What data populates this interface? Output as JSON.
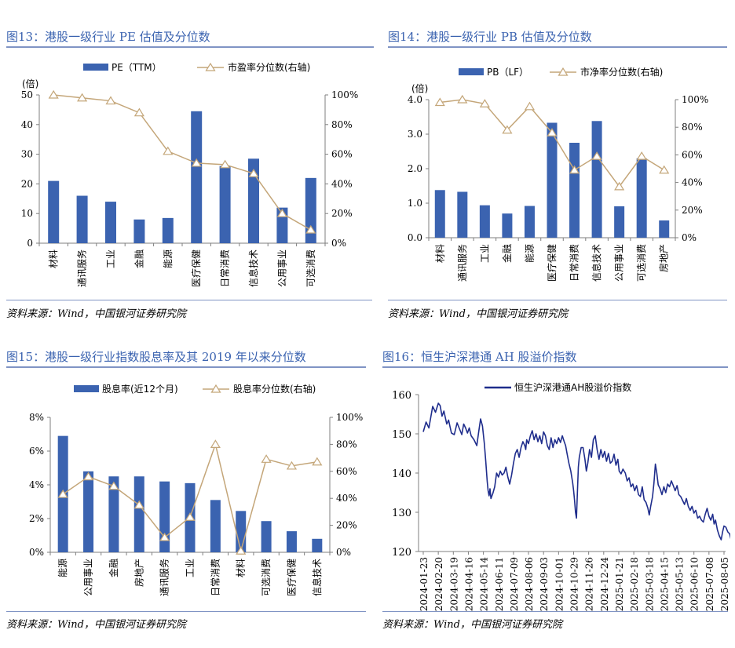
{
  "colors": {
    "bar": "#3b63b0",
    "line": "#c4a679",
    "title": "#3b63b0",
    "navy": "#1f2d8c",
    "axis": "#7f7f7f"
  },
  "source_text": "资料来源：Wind，中国银河证券研究院",
  "chart_data": [
    {
      "id": "fig13",
      "title": "图13：港股一级行业 PE 估值及分位数",
      "type": "bar+line",
      "unit_label": "(倍)",
      "legend": {
        "bar": "PE（TTM）",
        "line": "市盈率分位数(右轴)"
      },
      "categories": [
        "材料",
        "通讯服务",
        "工业",
        "金融",
        "能源",
        "医疗保健",
        "日常消费",
        "信息技术",
        "公用事业",
        "可选消费"
      ],
      "series": [
        {
          "name": "PE（TTM）",
          "axis": "left",
          "kind": "bar",
          "values": [
            21,
            16,
            14,
            8,
            8.5,
            44.5,
            26,
            28.5,
            12,
            22
          ]
        },
        {
          "name": "市盈率分位数(右轴)",
          "axis": "right",
          "kind": "line",
          "values": [
            100,
            98,
            96,
            88,
            62,
            54,
            53,
            47,
            20,
            9
          ]
        }
      ],
      "y_left": {
        "min": 0,
        "max": 50,
        "ticks": [
          "0",
          "10",
          "20",
          "30",
          "40",
          "50"
        ]
      },
      "y_right": {
        "min": 0,
        "max": 100,
        "ticks": [
          "0%",
          "20%",
          "40%",
          "60%",
          "80%",
          "100%"
        ]
      },
      "legend_position": "top-center"
    },
    {
      "id": "fig14",
      "title": "图14：港股一级行业 PB 估值及分位数",
      "type": "bar+line",
      "unit_label": "(倍)",
      "legend": {
        "bar": "PB（LF）",
        "line": "市净率分位数(右轴)"
      },
      "categories": [
        "材料",
        "通讯服务",
        "工业",
        "金融",
        "能源",
        "医疗保健",
        "日常消费",
        "信息技术",
        "公用事业",
        "可选消费",
        "房地产"
      ],
      "series": [
        {
          "name": "PB（LF）",
          "axis": "left",
          "kind": "bar",
          "values": [
            1.38,
            1.33,
            0.94,
            0.7,
            0.92,
            3.33,
            2.75,
            3.38,
            0.91,
            2.3,
            0.5
          ]
        },
        {
          "name": "市净率分位数(右轴)",
          "axis": "right",
          "kind": "line",
          "values": [
            98,
            100,
            97,
            78,
            95,
            76,
            49,
            59,
            37,
            59,
            49
          ]
        }
      ],
      "y_left": {
        "min": 0,
        "max": 4,
        "ticks": [
          "0.0",
          "1.0",
          "2.0",
          "3.0",
          "4.0"
        ]
      },
      "y_right": {
        "min": 0,
        "max": 100,
        "ticks": [
          "0%",
          "20%",
          "40%",
          "60%",
          "80%",
          "100%"
        ]
      },
      "legend_position": "top-center"
    },
    {
      "id": "fig15",
      "title": "图15：港股一级行业指数股息率及其 2019 年以来分位数",
      "type": "bar+line",
      "legend": {
        "bar": "股息率(近12个月)",
        "line": "股息率分位数(右轴)"
      },
      "categories": [
        "能源",
        "公用事业",
        "金融",
        "房地产",
        "通讯服务",
        "工业",
        "日常消费",
        "材料",
        "可选消费",
        "医疗保健",
        "信息技术"
      ],
      "series": [
        {
          "name": "股息率(近12个月)",
          "axis": "left",
          "kind": "bar",
          "values": [
            6.9,
            4.8,
            4.5,
            4.5,
            4.2,
            4.1,
            3.1,
            2.45,
            1.85,
            1.25,
            0.8
          ]
        },
        {
          "name": "股息率分位数(右轴)",
          "axis": "right",
          "kind": "line",
          "values": [
            43,
            56,
            49,
            35,
            11,
            26,
            80,
            1,
            69,
            64,
            67
          ]
        }
      ],
      "y_left": {
        "min": 0,
        "max": 8,
        "ticks": [
          "0%",
          "2%",
          "4%",
          "6%",
          "8%"
        ]
      },
      "y_right": {
        "min": 0,
        "max": 100,
        "ticks": [
          "0%",
          "20%",
          "40%",
          "60%",
          "80%",
          "100%"
        ]
      },
      "legend_position": "top-center"
    },
    {
      "id": "fig16",
      "title": "图16：恒生沪深港通 AH 股溢价指数",
      "type": "line",
      "legend": {
        "line": "恒生沪深港通AH股溢价指数"
      },
      "x_ticks": [
        "2024-01-23",
        "2024-02-20",
        "2024-03-19",
        "2024-04-16",
        "2024-05-14",
        "2024-06-11",
        "2024-07-09",
        "2024-08-06",
        "2024-09-03",
        "2024-10-01",
        "2024-10-29",
        "2024-11-26",
        "2024-12-24",
        "2025-01-21",
        "2025-02-18",
        "2025-03-18",
        "2025-04-15",
        "2025-05-13",
        "2025-06-10",
        "2025-07-08",
        "2025-08-05"
      ],
      "y": {
        "min": 120,
        "max": 160,
        "ticks": [
          "120",
          "130",
          "140",
          "150",
          "160"
        ]
      },
      "series": [
        {
          "name": "恒生沪深港通AH股溢价指数",
          "points": [
            [
              0,
              150.5
            ],
            [
              0.3,
              153
            ],
            [
              0.6,
              151.5
            ],
            [
              1,
              157
            ],
            [
              1.3,
              155.5
            ],
            [
              1.6,
              157.8
            ],
            [
              1.8,
              157.2
            ],
            [
              2,
              154.5
            ],
            [
              2.2,
              155.8
            ],
            [
              2.5,
              152.5
            ],
            [
              2.7,
              153.5
            ],
            [
              2.85,
              151.8
            ],
            [
              3,
              150.2
            ],
            [
              3.3,
              149.8
            ],
            [
              3.6,
              152.8
            ],
            [
              3.9,
              151
            ],
            [
              4.1,
              149.8
            ],
            [
              4.3,
              152.5
            ],
            [
              4.5,
              151.5
            ],
            [
              4.7,
              150.2
            ],
            [
              4.9,
              151.5
            ],
            [
              5.1,
              149.5
            ],
            [
              5.4,
              148.5
            ],
            [
              5.7,
              147
            ],
            [
              5.9,
              150.5
            ],
            [
              6.1,
              153.8
            ],
            [
              6.3,
              152
            ],
            [
              6.5,
              147.5
            ],
            [
              6.65,
              143
            ],
            [
              6.8,
              138
            ],
            [
              6.9,
              135.5
            ],
            [
              7,
              134.2
            ],
            [
              7.1,
              136
            ],
            [
              7.2,
              133.5
            ],
            [
              7.4,
              134.8
            ],
            [
              7.6,
              136.5
            ],
            [
              7.8,
              140
            ],
            [
              8,
              139
            ],
            [
              8.2,
              140.5
            ],
            [
              8.4,
              139.5
            ],
            [
              8.6,
              140
            ],
            [
              8.8,
              141.5
            ],
            [
              9,
              139
            ],
            [
              9.2,
              137.2
            ],
            [
              9.4,
              139.5
            ],
            [
              9.6,
              142.5
            ],
            [
              9.8,
              145
            ],
            [
              10,
              146
            ],
            [
              10.2,
              144
            ],
            [
              10.4,
              146.5
            ],
            [
              10.6,
              148
            ],
            [
              10.8,
              147
            ],
            [
              10.9,
              146
            ],
            [
              11,
              148.5
            ],
            [
              11.2,
              147.5
            ],
            [
              11.4,
              149.5
            ],
            [
              11.6,
              150.8
            ],
            [
              11.8,
              148.5
            ],
            [
              12,
              150
            ],
            [
              12.2,
              148
            ],
            [
              12.4,
              149.5
            ],
            [
              12.6,
              147.5
            ],
            [
              12.8,
              150.5
            ],
            [
              13,
              149.5
            ],
            [
              13.2,
              147
            ],
            [
              13.4,
              146
            ],
            [
              13.6,
              149
            ],
            [
              13.8,
              146.5
            ],
            [
              14,
              148.5
            ],
            [
              14.2,
              147.5
            ],
            [
              14.4,
              149
            ],
            [
              14.6,
              147.8
            ],
            [
              14.8,
              149.5
            ],
            [
              15,
              148
            ],
            [
              15.15,
              147
            ],
            [
              15.3,
              145
            ],
            [
              15.5,
              142.5
            ],
            [
              15.7,
              140.5
            ],
            [
              15.9,
              137.5
            ],
            [
              16,
              135.5
            ],
            [
              16.1,
              133
            ],
            [
              16.2,
              130
            ],
            [
              16.3,
              128.5
            ],
            [
              16.4,
              135
            ],
            [
              16.5,
              141.5
            ],
            [
              16.6,
              144
            ],
            [
              16.8,
              146.5
            ],
            [
              17,
              146.5
            ],
            [
              17.2,
              143.5
            ],
            [
              17.35,
              140.5
            ],
            [
              17.5,
              142.5
            ],
            [
              17.7,
              146
            ],
            [
              17.9,
              144
            ],
            [
              18.1,
              148.5
            ],
            [
              18.3,
              149.5
            ],
            [
              18.5,
              146
            ],
            [
              18.7,
              143.5
            ],
            [
              18.9,
              146
            ],
            [
              19.1,
              144
            ],
            [
              19.3,
              145.5
            ],
            [
              19.5,
              143
            ],
            [
              19.7,
              145
            ],
            [
              19.9,
              142.5
            ],
            [
              20.1,
              143
            ],
            [
              20.3,
              144.8
            ],
            [
              20.5,
              142
            ],
            [
              20.7,
              143.5
            ],
            [
              20.85,
              140.5
            ],
            [
              21.05,
              139.8
            ],
            [
              21.25,
              141
            ],
            [
              21.5,
              140
            ],
            [
              21.7,
              138
            ],
            [
              21.9,
              138.8
            ],
            [
              22.1,
              136.5
            ],
            [
              22.3,
              137.2
            ],
            [
              22.5,
              135.5
            ],
            [
              22.7,
              136.8
            ],
            [
              22.9,
              134.5
            ],
            [
              23.1,
              134
            ],
            [
              23.3,
              136.5
            ],
            [
              23.5,
              133.2
            ],
            [
              23.7,
              132.5
            ],
            [
              23.9,
              131
            ],
            [
              24.05,
              129.3
            ],
            [
              24.2,
              131.5
            ],
            [
              24.4,
              134
            ],
            [
              24.55,
              137.5
            ],
            [
              24.7,
              142.3
            ],
            [
              24.85,
              140
            ],
            [
              25,
              137
            ],
            [
              25.2,
              136
            ],
            [
              25.4,
              134.5
            ],
            [
              25.6,
              136.5
            ],
            [
              25.8,
              135
            ],
            [
              26,
              137.2
            ],
            [
              26.2,
              136.5
            ],
            [
              26.4,
              138
            ],
            [
              26.6,
              136.8
            ],
            [
              26.8,
              135.5
            ],
            [
              27,
              136.8
            ],
            [
              27.2,
              134.5
            ],
            [
              27.4,
              134
            ],
            [
              27.6,
              133
            ],
            [
              27.8,
              132
            ],
            [
              28,
              133.5
            ],
            [
              28.2,
              131.5
            ],
            [
              28.4,
              130.5
            ],
            [
              28.6,
              131.5
            ],
            [
              28.8,
              129.8
            ],
            [
              29,
              130.5
            ],
            [
              29.2,
              128.5
            ],
            [
              29.4,
              129
            ],
            [
              29.6,
              128
            ],
            [
              29.8,
              127.5
            ],
            [
              30,
              129.5
            ],
            [
              30.2,
              131
            ],
            [
              30.4,
              129
            ],
            [
              30.6,
              128
            ],
            [
              30.8,
              129.5
            ],
            [
              30.95,
              127
            ],
            [
              31.1,
              128
            ],
            [
              31.3,
              125.5
            ],
            [
              31.5,
              124
            ],
            [
              31.7,
              123
            ],
            [
              31.85,
              125
            ],
            [
              32,
              126.5
            ],
            [
              32.2,
              126.2
            ],
            [
              32.4,
              125
            ],
            [
              32.6,
              124.5
            ],
            [
              32.8,
              122.5
            ]
          ]
        }
      ],
      "legend_position": "top-center"
    }
  ]
}
